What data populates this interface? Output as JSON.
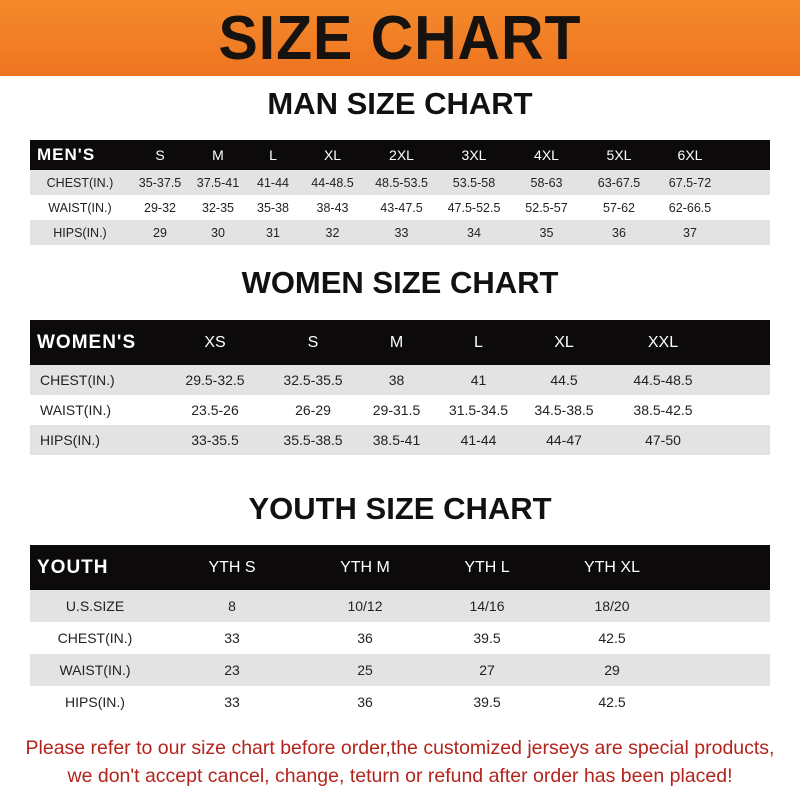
{
  "banner_title": "SIZE CHART",
  "men": {
    "title": "MAN SIZE CHART",
    "header": [
      "MEN'S",
      "S",
      "M",
      "L",
      "XL",
      "2XL",
      "3XL",
      "4XL",
      "5XL",
      "6XL"
    ],
    "rows": [
      [
        "CHEST(IN.)",
        "35-37.5",
        "37.5-41",
        "41-44",
        "44-48.5",
        "48.5-53.5",
        "53.5-58",
        "58-63",
        "63-67.5",
        "67.5-72"
      ],
      [
        "WAIST(IN.)",
        "29-32",
        "32-35",
        "35-38",
        "38-43",
        "43-47.5",
        "47.5-52.5",
        "52.5-57",
        "57-62",
        "62-66.5"
      ],
      [
        "HIPS(IN.)",
        "29",
        "30",
        "31",
        "32",
        "33",
        "34",
        "35",
        "36",
        "37"
      ]
    ]
  },
  "women": {
    "title": "WOMEN SIZE CHART",
    "header": [
      "WOMEN'S",
      "XS",
      "S",
      "M",
      "L",
      "XL",
      "XXL"
    ],
    "rows": [
      [
        "CHEST(IN.)",
        "29.5-32.5",
        "32.5-35.5",
        "38",
        "41",
        "44.5",
        "44.5-48.5"
      ],
      [
        "WAIST(IN.)",
        "23.5-26",
        "26-29",
        "29-31.5",
        "31.5-34.5",
        "34.5-38.5",
        "38.5-42.5"
      ],
      [
        "HIPS(IN.)",
        "33-35.5",
        "35.5-38.5",
        "38.5-41",
        "41-44",
        "44-47",
        "47-50"
      ]
    ]
  },
  "youth": {
    "title": "YOUTH SIZE CHART",
    "header": [
      "YOUTH",
      "YTH S",
      "YTH M",
      "YTH L",
      "YTH XL"
    ],
    "rows": [
      [
        "U.S.SIZE",
        "8",
        "10/12",
        "14/16",
        "18/20"
      ],
      [
        "CHEST(IN.)",
        "33",
        "36",
        "39.5",
        "42.5"
      ],
      [
        "WAIST(IN.)",
        "23",
        "25",
        "27",
        "29"
      ],
      [
        "HIPS(IN.)",
        "33",
        "36",
        "39.5",
        "42.5"
      ]
    ]
  },
  "note": {
    "line1": "Please refer to our size chart before order,the customized jerseys are special products,",
    "line2": "we don't accept cancel, change, teturn or refund after order has been placed!"
  },
  "colors": {
    "banner": "#f07a20",
    "header_row": "#0c0a0a",
    "stripe": "#e3e3e3",
    "note": "#b3241c"
  }
}
